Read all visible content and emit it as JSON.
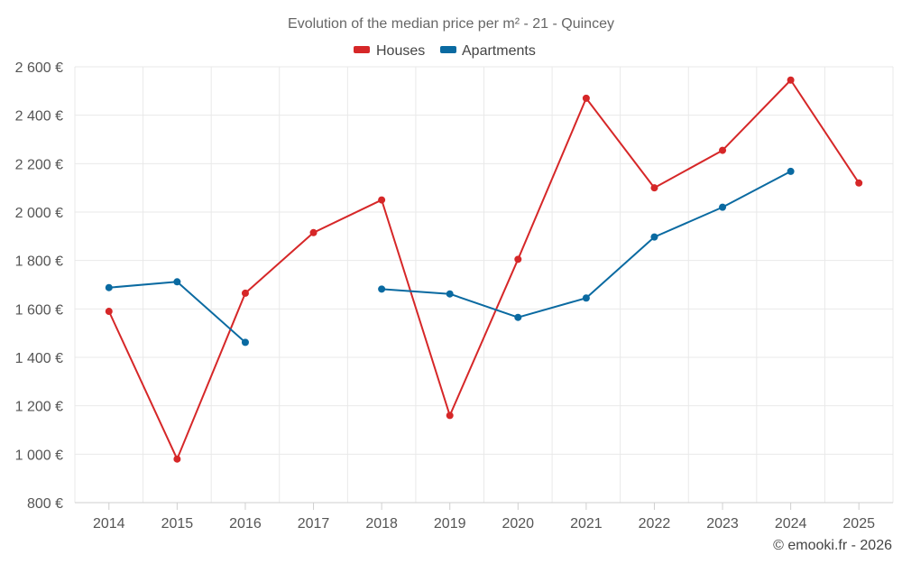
{
  "chart_data": {
    "type": "line",
    "title": "Evolution of the median price per m² - 21 - Quincey",
    "xlabel": "",
    "ylabel": "",
    "categories": [
      "2014",
      "2015",
      "2016",
      "2017",
      "2018",
      "2019",
      "2020",
      "2021",
      "2022",
      "2023",
      "2024",
      "2025"
    ],
    "ylim": [
      800,
      2600
    ],
    "yticks": [
      800,
      1000,
      1200,
      1400,
      1600,
      1800,
      2000,
      2200,
      2400,
      2600
    ],
    "ytick_labels": [
      "800 €",
      "1 000 €",
      "1 200 €",
      "1 400 €",
      "1 600 €",
      "1 800 €",
      "2 000 €",
      "2 200 €",
      "2 400 €",
      "2 600 €"
    ],
    "grid": true,
    "legend_position": "top-center",
    "series": [
      {
        "name": "Houses",
        "color": "#d62728",
        "values": [
          1590,
          980,
          1665,
          1915,
          2050,
          1160,
          1805,
          2470,
          2100,
          2255,
          2545,
          2120
        ]
      },
      {
        "name": "Apartments",
        "color": "#0a6aa1",
        "values": [
          1688,
          1712,
          1462,
          null,
          1682,
          1662,
          1565,
          1645,
          1897,
          2020,
          2168,
          null
        ]
      }
    ]
  },
  "credit": "© emooki.fr - 2026"
}
